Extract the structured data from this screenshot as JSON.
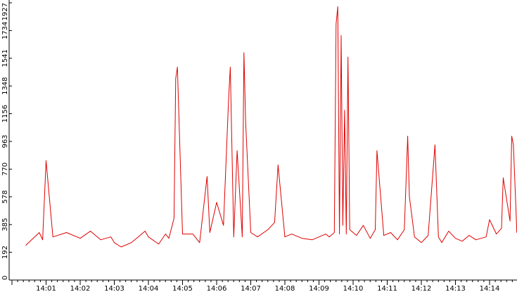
{
  "colors": {
    "background": "#ffffff",
    "line": "#e00000",
    "axis": "#000000"
  },
  "chart_data": {
    "type": "line",
    "title": "",
    "xlabel": "",
    "ylabel": "",
    "ylim": [
      0,
      1927
    ],
    "grid": false,
    "legend": "none",
    "x_tick_labels": [
      "14:01",
      "14:02",
      "14:03",
      "14:04",
      "14:05",
      "14:06",
      "14:07",
      "14:08",
      "14:09",
      "14:10",
      "14:11",
      "14:12",
      "14:13",
      "14:14"
    ],
    "y_tick_labels": [
      "0",
      "192",
      "385",
      "578",
      "770",
      "963",
      "1156",
      "1348",
      "1541",
      "1734",
      "1927"
    ],
    "x_range_minutes": [
      0.4,
      14.9
    ],
    "series": [
      {
        "color": "#e00000",
        "x": [
          0.4,
          0.8,
          0.9,
          1.0,
          1.2,
          1.6,
          2.0,
          2.3,
          2.6,
          2.9,
          3.0,
          3.2,
          3.5,
          3.7,
          3.9,
          4.0,
          4.3,
          4.5,
          4.6,
          4.75,
          4.8,
          4.85,
          5.0,
          5.3,
          5.5,
          5.72,
          5.8,
          6.0,
          6.2,
          6.35,
          6.4,
          6.5,
          6.6,
          6.75,
          6.8,
          6.85,
          7.0,
          7.2,
          7.5,
          7.7,
          7.8,
          8.0,
          8.2,
          8.5,
          8.8,
          9.0,
          9.2,
          9.3,
          9.45,
          9.5,
          9.55,
          9.6,
          9.65,
          9.7,
          9.75,
          9.8,
          9.85,
          9.9,
          10.1,
          10.3,
          10.5,
          10.65,
          10.7,
          10.9,
          11.1,
          11.3,
          11.5,
          11.6,
          11.65,
          11.8,
          12.0,
          12.2,
          12.4,
          12.5,
          12.6,
          12.8,
          13.0,
          13.2,
          13.4,
          13.6,
          13.9,
          14.0,
          14.2,
          14.35,
          14.4,
          14.6,
          14.65,
          14.7,
          14.8,
          14.9
        ],
        "y": [
          240,
          330,
          280,
          830,
          300,
          330,
          290,
          340,
          280,
          300,
          260,
          230,
          260,
          300,
          340,
          300,
          250,
          320,
          290,
          430,
          1400,
          1480,
          320,
          320,
          260,
          720,
          330,
          540,
          380,
          1260,
          1480,
          300,
          900,
          300,
          1580,
          1100,
          330,
          300,
          350,
          400,
          800,
          300,
          320,
          290,
          280,
          300,
          320,
          300,
          330,
          1780,
          1900,
          320,
          1700,
          380,
          1180,
          320,
          1550,
          350,
          310,
          380,
          290,
          350,
          900,
          310,
          330,
          280,
          350,
          1000,
          580,
          300,
          260,
          310,
          940,
          300,
          260,
          340,
          290,
          270,
          310,
          280,
          300,
          420,
          320,
          360,
          710,
          410,
          1000,
          940,
          330,
          420
        ]
      }
    ]
  }
}
